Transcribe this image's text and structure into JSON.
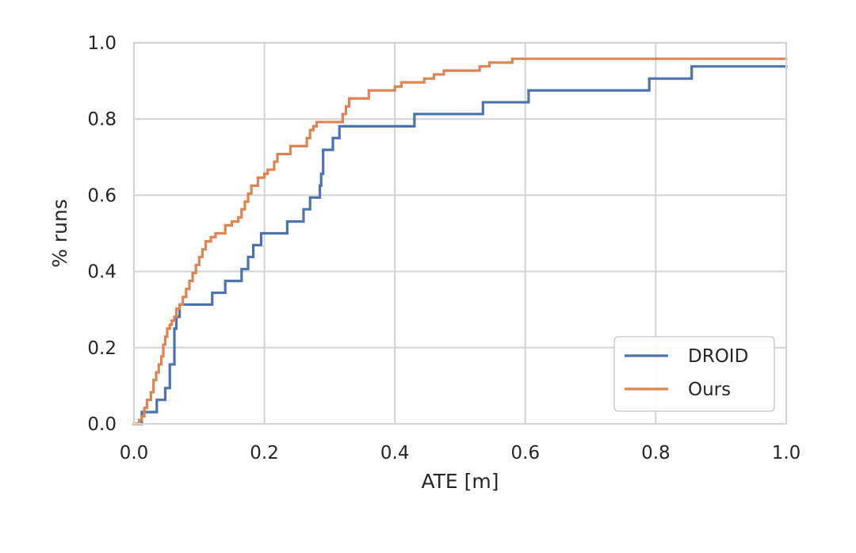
{
  "chart_data": {
    "type": "line",
    "title": "",
    "xlabel": "ATE [m]",
    "ylabel": "% runs",
    "xlim": [
      0.0,
      1.0
    ],
    "ylim": [
      0.0,
      1.0
    ],
    "xticks": [
      "0.0",
      "0.2",
      "0.4",
      "0.6",
      "0.8",
      "1.0"
    ],
    "yticks": [
      "0.0",
      "0.2",
      "0.4",
      "0.6",
      "0.8",
      "1.0"
    ],
    "grid": true,
    "legend_position": "bottom-right",
    "step": true,
    "series": [
      {
        "name": "DROID",
        "color": "#4c72b0",
        "points": [
          [
            0.0,
            0.0
          ],
          [
            0.012,
            0.0
          ],
          [
            0.012,
            0.031
          ],
          [
            0.035,
            0.031
          ],
          [
            0.035,
            0.063
          ],
          [
            0.048,
            0.063
          ],
          [
            0.048,
            0.094
          ],
          [
            0.055,
            0.094
          ],
          [
            0.055,
            0.156
          ],
          [
            0.062,
            0.156
          ],
          [
            0.062,
            0.25
          ],
          [
            0.065,
            0.25
          ],
          [
            0.065,
            0.281
          ],
          [
            0.07,
            0.281
          ],
          [
            0.07,
            0.313
          ],
          [
            0.12,
            0.313
          ],
          [
            0.12,
            0.344
          ],
          [
            0.14,
            0.344
          ],
          [
            0.14,
            0.375
          ],
          [
            0.165,
            0.375
          ],
          [
            0.165,
            0.406
          ],
          [
            0.175,
            0.406
          ],
          [
            0.175,
            0.438
          ],
          [
            0.183,
            0.438
          ],
          [
            0.183,
            0.469
          ],
          [
            0.195,
            0.469
          ],
          [
            0.195,
            0.5
          ],
          [
            0.235,
            0.5
          ],
          [
            0.235,
            0.531
          ],
          [
            0.26,
            0.531
          ],
          [
            0.26,
            0.563
          ],
          [
            0.27,
            0.563
          ],
          [
            0.27,
            0.594
          ],
          [
            0.285,
            0.594
          ],
          [
            0.285,
            0.625
          ],
          [
            0.287,
            0.625
          ],
          [
            0.287,
            0.656
          ],
          [
            0.29,
            0.656
          ],
          [
            0.29,
            0.719
          ],
          [
            0.305,
            0.719
          ],
          [
            0.305,
            0.75
          ],
          [
            0.315,
            0.75
          ],
          [
            0.315,
            0.781
          ],
          [
            0.43,
            0.781
          ],
          [
            0.43,
            0.813
          ],
          [
            0.535,
            0.813
          ],
          [
            0.535,
            0.844
          ],
          [
            0.605,
            0.844
          ],
          [
            0.605,
            0.875
          ],
          [
            0.79,
            0.875
          ],
          [
            0.79,
            0.906
          ],
          [
            0.855,
            0.906
          ],
          [
            0.855,
            0.938
          ],
          [
            1.0,
            0.938
          ]
        ]
      },
      {
        "name": "Ours",
        "color": "#dd8452",
        "points": [
          [
            0.0,
            0.0
          ],
          [
            0.008,
            0.0
          ],
          [
            0.008,
            0.01
          ],
          [
            0.012,
            0.01
          ],
          [
            0.012,
            0.02
          ],
          [
            0.016,
            0.02
          ],
          [
            0.016,
            0.042
          ],
          [
            0.02,
            0.042
          ],
          [
            0.02,
            0.063
          ],
          [
            0.026,
            0.063
          ],
          [
            0.026,
            0.083
          ],
          [
            0.03,
            0.083
          ],
          [
            0.03,
            0.115
          ],
          [
            0.034,
            0.115
          ],
          [
            0.034,
            0.135
          ],
          [
            0.038,
            0.135
          ],
          [
            0.038,
            0.156
          ],
          [
            0.042,
            0.156
          ],
          [
            0.042,
            0.177
          ],
          [
            0.045,
            0.177
          ],
          [
            0.045,
            0.208
          ],
          [
            0.048,
            0.208
          ],
          [
            0.048,
            0.229
          ],
          [
            0.051,
            0.229
          ],
          [
            0.051,
            0.25
          ],
          [
            0.055,
            0.25
          ],
          [
            0.055,
            0.26
          ],
          [
            0.058,
            0.26
          ],
          [
            0.058,
            0.271
          ],
          [
            0.062,
            0.271
          ],
          [
            0.062,
            0.281
          ],
          [
            0.065,
            0.281
          ],
          [
            0.065,
            0.302
          ],
          [
            0.07,
            0.302
          ],
          [
            0.07,
            0.313
          ],
          [
            0.075,
            0.313
          ],
          [
            0.075,
            0.333
          ],
          [
            0.08,
            0.333
          ],
          [
            0.08,
            0.354
          ],
          [
            0.085,
            0.354
          ],
          [
            0.085,
            0.375
          ],
          [
            0.09,
            0.375
          ],
          [
            0.09,
            0.396
          ],
          [
            0.095,
            0.396
          ],
          [
            0.095,
            0.417
          ],
          [
            0.1,
            0.417
          ],
          [
            0.1,
            0.438
          ],
          [
            0.105,
            0.438
          ],
          [
            0.105,
            0.458
          ],
          [
            0.11,
            0.458
          ],
          [
            0.11,
            0.479
          ],
          [
            0.118,
            0.479
          ],
          [
            0.118,
            0.49
          ],
          [
            0.125,
            0.49
          ],
          [
            0.125,
            0.5
          ],
          [
            0.14,
            0.5
          ],
          [
            0.14,
            0.521
          ],
          [
            0.15,
            0.521
          ],
          [
            0.15,
            0.531
          ],
          [
            0.16,
            0.531
          ],
          [
            0.16,
            0.542
          ],
          [
            0.165,
            0.542
          ],
          [
            0.165,
            0.563
          ],
          [
            0.17,
            0.563
          ],
          [
            0.17,
            0.583
          ],
          [
            0.175,
            0.583
          ],
          [
            0.175,
            0.604
          ],
          [
            0.18,
            0.604
          ],
          [
            0.18,
            0.625
          ],
          [
            0.19,
            0.625
          ],
          [
            0.19,
            0.646
          ],
          [
            0.2,
            0.646
          ],
          [
            0.2,
            0.656
          ],
          [
            0.205,
            0.656
          ],
          [
            0.205,
            0.667
          ],
          [
            0.215,
            0.667
          ],
          [
            0.215,
            0.688
          ],
          [
            0.22,
            0.688
          ],
          [
            0.22,
            0.708
          ],
          [
            0.24,
            0.708
          ],
          [
            0.24,
            0.729
          ],
          [
            0.265,
            0.729
          ],
          [
            0.265,
            0.75
          ],
          [
            0.27,
            0.75
          ],
          [
            0.27,
            0.771
          ],
          [
            0.275,
            0.771
          ],
          [
            0.275,
            0.781
          ],
          [
            0.28,
            0.781
          ],
          [
            0.28,
            0.792
          ],
          [
            0.32,
            0.792
          ],
          [
            0.32,
            0.813
          ],
          [
            0.325,
            0.813
          ],
          [
            0.325,
            0.833
          ],
          [
            0.33,
            0.833
          ],
          [
            0.33,
            0.854
          ],
          [
            0.36,
            0.854
          ],
          [
            0.36,
            0.875
          ],
          [
            0.4,
            0.875
          ],
          [
            0.4,
            0.885
          ],
          [
            0.41,
            0.885
          ],
          [
            0.41,
            0.896
          ],
          [
            0.445,
            0.896
          ],
          [
            0.445,
            0.906
          ],
          [
            0.46,
            0.906
          ],
          [
            0.46,
            0.917
          ],
          [
            0.475,
            0.917
          ],
          [
            0.475,
            0.927
          ],
          [
            0.53,
            0.927
          ],
          [
            0.53,
            0.938
          ],
          [
            0.545,
            0.938
          ],
          [
            0.545,
            0.948
          ],
          [
            0.58,
            0.948
          ],
          [
            0.58,
            0.958
          ],
          [
            1.0,
            0.958
          ]
        ]
      }
    ]
  }
}
